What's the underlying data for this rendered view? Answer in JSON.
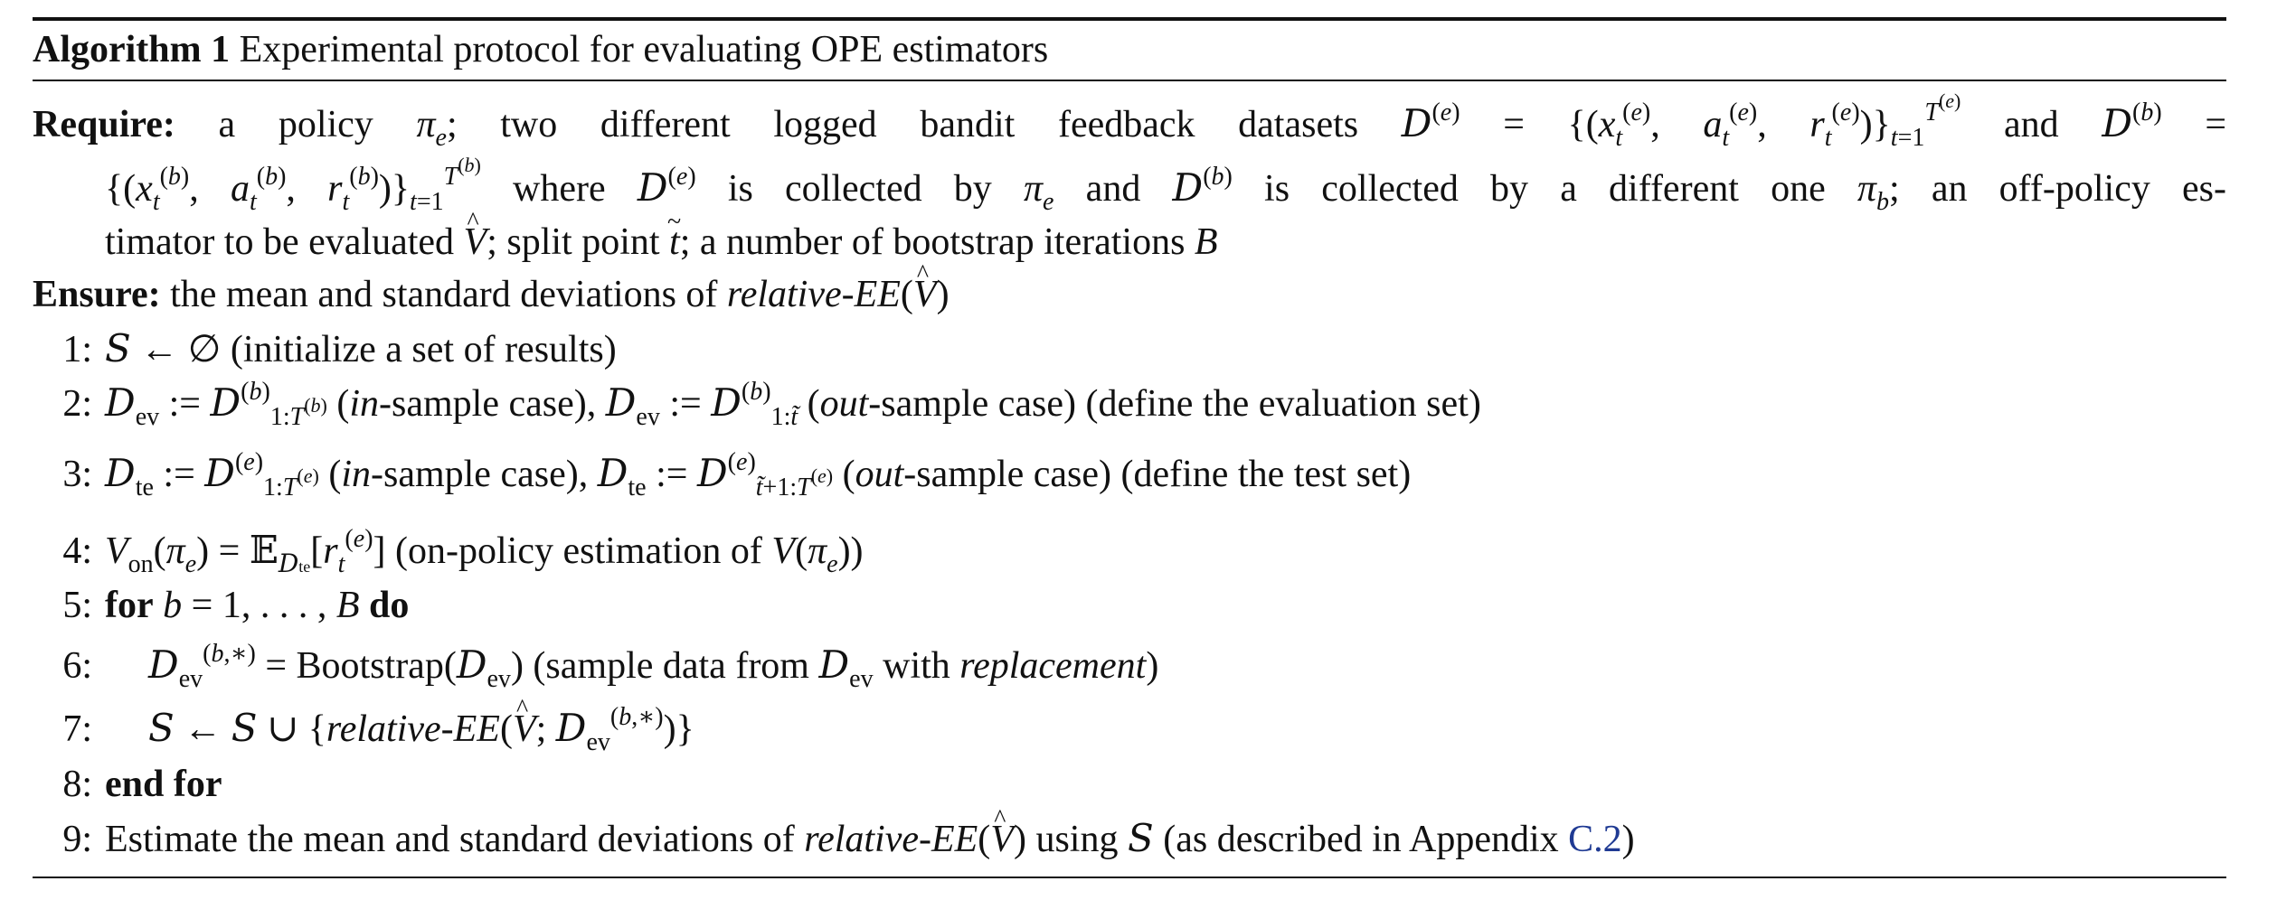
{
  "algorithm": {
    "label": "Algorithm 1",
    "title": "Experimental protocol for evaluating OPE estimators"
  },
  "require": {
    "keyword": "Require:",
    "line1": "a policy πₑ; two different logged bandit feedback datasets D⁽ᵉ⁾ = {(xₜ⁽ᵉ⁾, aₜ⁽ᵉ⁾, rₜ⁽ᵉ⁾)}ₜ₌₁ᵀ⁽ᵉ⁾ and D⁽ᵇ⁾ =",
    "line2": "{(xₜ⁽ᵇ⁾, aₜ⁽ᵇ⁾, rₜ⁽ᵇ⁾)}ₜ₌₁ᵀ⁽ᵇ⁾ where D⁽ᵉ⁾ is collected by πₑ and D⁽ᵇ⁾ is collected by a different one π_b; an off-policy es-",
    "line3": "timator to be evaluated V̂; split point t̃; a number of bootstrap iterations B"
  },
  "ensure": {
    "keyword": "Ensure:",
    "text_pre": "the mean and standard deviations of ",
    "text_em": "relative-EE",
    "text_post": "(V̂)"
  },
  "steps": [
    {
      "num": "1:",
      "text": "S ← ∅ (initialize a set of results)"
    },
    {
      "num": "2:",
      "text": "D_ev := D⁽ᵇ⁾₁:T⁽ᵇ⁾ (in-sample case), D_ev := D⁽ᵇ⁾₁:t̃ (out-sample case) (define the evaluation set)"
    },
    {
      "num": "3:",
      "text": "D_te := D⁽ᵉ⁾₁:T⁽ᵉ⁾ (in-sample case), D_te := D⁽ᵉ⁾t̃+1:T⁽ᵉ⁾ (out-sample case) (define the test set)"
    },
    {
      "num": "4:",
      "text": "V_on(πₑ) = E_D_te[rₜ⁽ᵉ⁾] (on-policy estimation of V(πₑ))"
    },
    {
      "num": "5:",
      "text": "for b = 1, . . . , B do"
    },
    {
      "num": "6:",
      "text": "D_ev⁽ᵇ,*⁾ = Bootstrap(D_ev) (sample data from D_ev with replacement)"
    },
    {
      "num": "7:",
      "text": "S ← S ∪ {relative-EE(V̂; D_ev⁽ᵇ,*⁾)}"
    },
    {
      "num": "8:",
      "text": "end for"
    },
    {
      "num": "9:",
      "text": "Estimate the mean and standard deviations of relative-EE(V̂) using S (as described in Appendix C.2)"
    }
  ],
  "appendix_link": "C.2",
  "colors": {
    "link": "#1f3a93",
    "text": "#111111"
  }
}
